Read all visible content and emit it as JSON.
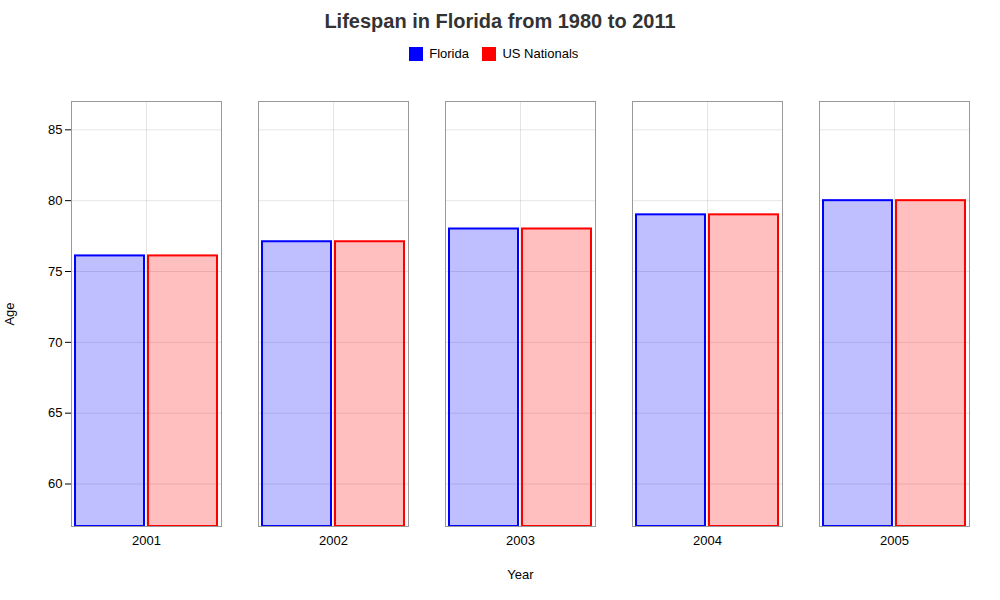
{
  "chart_data": {
    "type": "bar",
    "title": "Lifespan in Florida from 1980 to 2011",
    "x_label": "Year",
    "y_label": "Age",
    "categories": [
      "2001",
      "2002",
      "2003",
      "2004",
      "2005"
    ],
    "series": [
      {
        "name": "Florida",
        "color": "#0000ff",
        "values": [
          76.1,
          77.1,
          78.0,
          79.0,
          80.0
        ]
      },
      {
        "name": "US Nationals",
        "color": "#ff0000",
        "values": [
          76.1,
          77.1,
          78.0,
          79.0,
          80.0
        ]
      }
    ],
    "ylim": [
      57,
      87
    ],
    "yticks": [
      60,
      65,
      70,
      75,
      80,
      85
    ],
    "grid": true,
    "legend": "top"
  }
}
